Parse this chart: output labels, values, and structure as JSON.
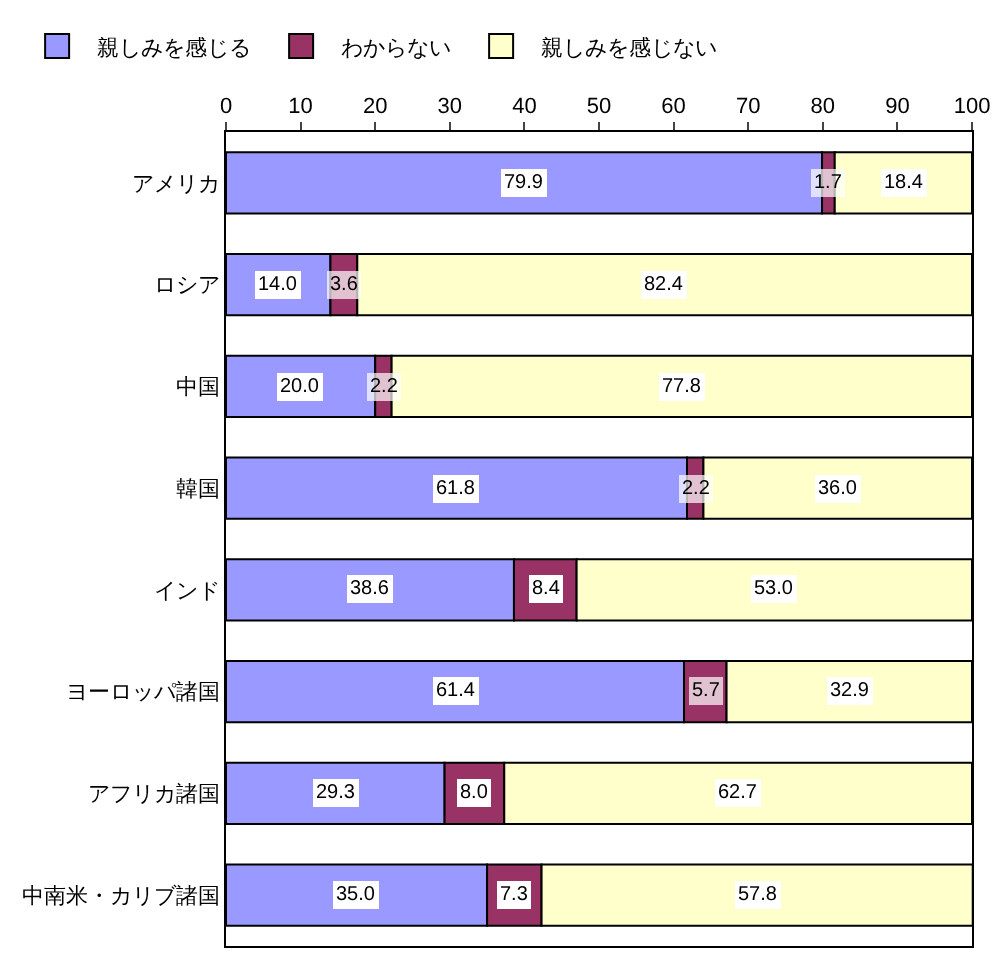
{
  "chart_data": {
    "type": "bar",
    "orientation": "horizontal",
    "stacked": true,
    "legend": "top",
    "grid": false,
    "categories": [
      "アメリカ",
      "ロシア",
      "中国",
      "韓国",
      "インド",
      "ヨーロッパ諸国",
      "アフリカ諸国",
      "中南米・カリブ諸国"
    ],
    "xlim": [
      0,
      100
    ],
    "xticks": [
      0,
      10,
      20,
      30,
      40,
      50,
      60,
      70,
      80,
      90,
      100
    ],
    "series": [
      {
        "name": "親しみを感じる",
        "color": "#9999ff",
        "values": [
          79.9,
          14.0,
          20.0,
          61.8,
          38.6,
          61.4,
          29.3,
          35.0
        ],
        "value_labels": [
          "79.9",
          "14.0",
          "20.0",
          "61.8",
          "38.6",
          "61.4",
          "29.3",
          "35.0"
        ]
      },
      {
        "name": "わからない",
        "color": "#993366",
        "values": [
          1.7,
          3.6,
          2.2,
          2.2,
          8.4,
          5.7,
          8.0,
          7.3
        ],
        "value_labels": [
          "1.7",
          "3.6",
          "2.2",
          "2.2",
          "8.4",
          "5.7",
          "8.0",
          "7.3"
        ]
      },
      {
        "name": "親しみを感じない",
        "color": "#ffffcc",
        "values": [
          18.4,
          82.4,
          77.8,
          36.0,
          53.0,
          32.9,
          62.7,
          57.8
        ],
        "value_labels": [
          "18.4",
          "82.4",
          "77.8",
          "36.0",
          "53.0",
          "32.9",
          "62.7",
          "57.8"
        ]
      }
    ]
  }
}
